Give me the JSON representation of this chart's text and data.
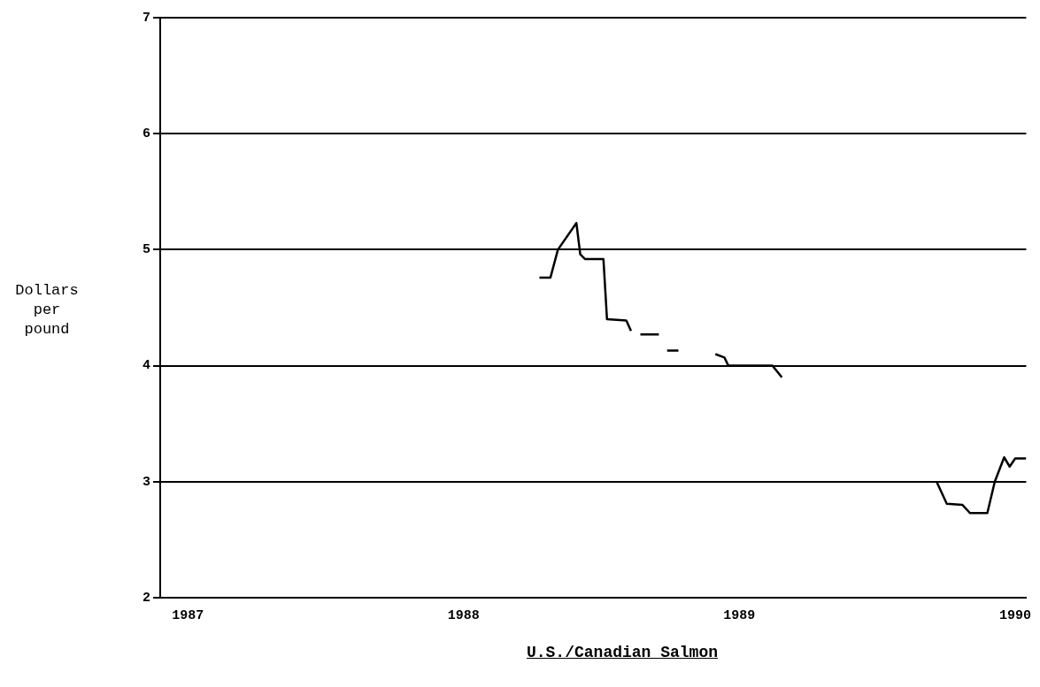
{
  "chart_data": {
    "type": "line",
    "title": "U.S./Canadian Salmon",
    "ylabel": "Dollars per pound",
    "x": [
      1988.275,
      1988.315,
      1988.342,
      1988.409,
      1988.423,
      1988.44,
      1988.507,
      1988.52,
      1988.59,
      1988.607,
      null,
      1988.641,
      1988.708,
      null,
      1988.738,
      1988.779,
      null,
      1988.913,
      1988.946,
      1988.96,
      1989.12,
      1989.13,
      1989.154,
      null,
      1989.715,
      1989.752,
      1989.809,
      1989.836,
      1989.899,
      1989.926,
      1989.96,
      1989.98,
      1990.0,
      1990.04
    ],
    "series": [
      {
        "color": "#000000",
        "values": [
          4.76,
          4.76,
          5.0,
          5.23,
          4.96,
          4.92,
          4.92,
          4.4,
          4.39,
          4.3,
          null,
          4.27,
          4.27,
          null,
          4.13,
          4.13,
          null,
          4.1,
          4.07,
          4.0,
          4.0,
          3.97,
          3.9,
          null,
          3.0,
          2.81,
          2.8,
          2.73,
          2.73,
          3.0,
          3.21,
          3.13,
          3.2,
          3.2
        ]
      }
    ],
    "xlim": [
      1986.9,
      1990.04
    ],
    "xticks": [
      1987,
      1988,
      1989,
      1990
    ],
    "ylim": [
      2,
      7
    ],
    "yticks": [
      2,
      3,
      4,
      5,
      6,
      7
    ],
    "grid": "y",
    "legend": false,
    "marker": "none",
    "line_style": "solid"
  }
}
